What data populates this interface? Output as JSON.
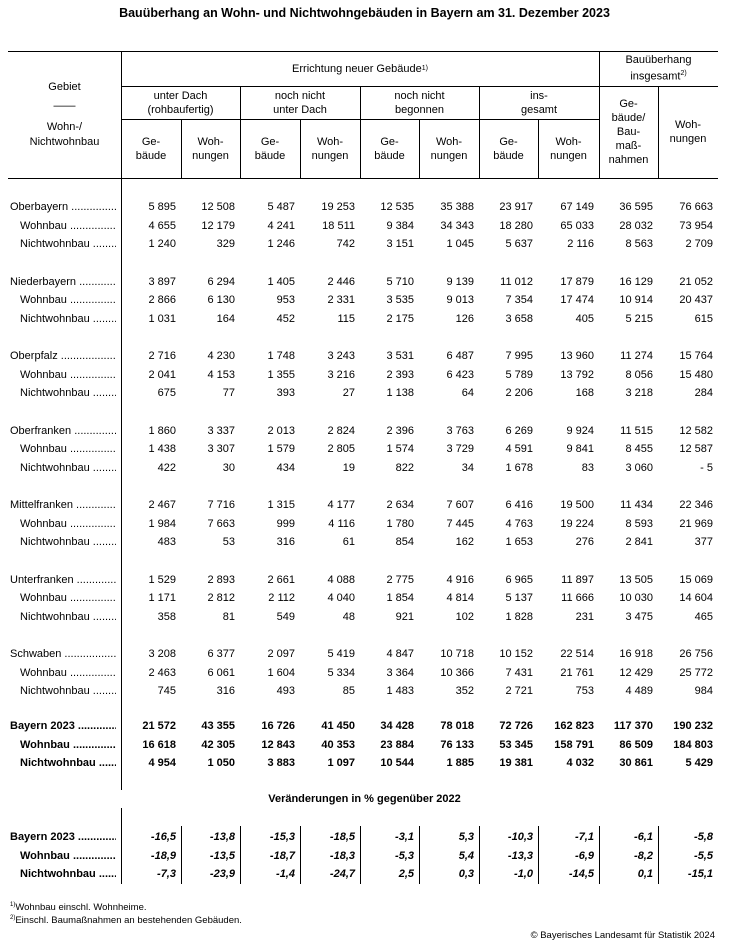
{
  "title": "Bauüberhang an Wohn- und Nichtwohngebäuden in Bayern am 31. Dezember 2023",
  "header": {
    "gebiet": "Gebiet",
    "dash": "——",
    "wohn": "Wohn-/",
    "nichtwohnbau": "Nichtwohnbau",
    "errichtung": "Errichtung neuer Gebäude",
    "errichtung_sup": "1)",
    "ueberhang_line1": "Bauüberhang",
    "ueberhang_line2": "insgesamt",
    "ueberhang_sup": "2)",
    "groups": [
      {
        "l1": "unter Dach",
        "l2": "(rohbaufertig)"
      },
      {
        "l1": "noch nicht",
        "l2": "unter Dach"
      },
      {
        "l1": "noch nicht",
        "l2": "begonnen"
      },
      {
        "l1": "ins-",
        "l2": "gesamt"
      }
    ],
    "gebaeude_l1": "Ge-",
    "gebaeude_l2": "bäude",
    "wohnungen_l1": "Woh-",
    "wohnungen_l2": "nungen",
    "ueb_gebaeude": [
      "Ge-",
      "bäude/",
      "Bau-",
      "maß-",
      "nahmen"
    ],
    "ueb_wohnungen": [
      "Woh-",
      "nungen"
    ]
  },
  "regions": [
    {
      "name": "Oberbayern",
      "rows": [
        [
          "5 895",
          "12 508",
          "5 487",
          "19 253",
          "12 535",
          "35 388",
          "23 917",
          "67 149",
          "36 595",
          "76 663"
        ],
        [
          "4 655",
          "12 179",
          "4 241",
          "18 511",
          "9 384",
          "34 343",
          "18 280",
          "65 033",
          "28 032",
          "73 954"
        ],
        [
          "1 240",
          "329",
          "1 246",
          "742",
          "3 151",
          "1 045",
          "5 637",
          "2 116",
          "8 563",
          "2 709"
        ]
      ]
    },
    {
      "name": "Niederbayern",
      "rows": [
        [
          "3 897",
          "6 294",
          "1 405",
          "2 446",
          "5 710",
          "9 139",
          "11 012",
          "17 879",
          "16 129",
          "21 052"
        ],
        [
          "2 866",
          "6 130",
          "953",
          "2 331",
          "3 535",
          "9 013",
          "7 354",
          "17 474",
          "10 914",
          "20 437"
        ],
        [
          "1 031",
          "164",
          "452",
          "115",
          "2 175",
          "126",
          "3 658",
          "405",
          "5 215",
          "615"
        ]
      ]
    },
    {
      "name": "Oberpfalz",
      "rows": [
        [
          "2 716",
          "4 230",
          "1 748",
          "3 243",
          "3 531",
          "6 487",
          "7 995",
          "13 960",
          "11 274",
          "15 764"
        ],
        [
          "2 041",
          "4 153",
          "1 355",
          "3 216",
          "2 393",
          "6 423",
          "5 789",
          "13 792",
          "8 056",
          "15 480"
        ],
        [
          "675",
          "77",
          "393",
          "27",
          "1 138",
          "64",
          "2 206",
          "168",
          "3 218",
          "284"
        ]
      ]
    },
    {
      "name": "Oberfranken",
      "rows": [
        [
          "1 860",
          "3 337",
          "2 013",
          "2 824",
          "2 396",
          "3 763",
          "6 269",
          "9 924",
          "11 515",
          "12 582"
        ],
        [
          "1 438",
          "3 307",
          "1 579",
          "2 805",
          "1 574",
          "3 729",
          "4 591",
          "9 841",
          "8 455",
          "12 587"
        ],
        [
          "422",
          "30",
          "434",
          "19",
          "822",
          "34",
          "1 678",
          "83",
          "3 060",
          "- 5"
        ]
      ]
    },
    {
      "name": "Mittelfranken",
      "rows": [
        [
          "2 467",
          "7 716",
          "1 315",
          "4 177",
          "2 634",
          "7 607",
          "6 416",
          "19 500",
          "11 434",
          "22 346"
        ],
        [
          "1 984",
          "7 663",
          "999",
          "4 116",
          "1 780",
          "7 445",
          "4 763",
          "19 224",
          "8 593",
          "21 969"
        ],
        [
          "483",
          "53",
          "316",
          "61",
          "854",
          "162",
          "1 653",
          "276",
          "2 841",
          "377"
        ]
      ]
    },
    {
      "name": "Unterfranken",
      "rows": [
        [
          "1 529",
          "2 893",
          "2 661",
          "4 088",
          "2 775",
          "4 916",
          "6 965",
          "11 897",
          "13 505",
          "15 069"
        ],
        [
          "1 171",
          "2 812",
          "2 112",
          "4 040",
          "1 854",
          "4 814",
          "5 137",
          "11 666",
          "10 030",
          "14 604"
        ],
        [
          "358",
          "81",
          "549",
          "48",
          "921",
          "102",
          "1 828",
          "231",
          "3 475",
          "465"
        ]
      ]
    },
    {
      "name": "Schwaben",
      "rows": [
        [
          "3 208",
          "6 377",
          "2 097",
          "5 419",
          "4 847",
          "10 718",
          "10 152",
          "22 514",
          "16 918",
          "26 756"
        ],
        [
          "2 463",
          "6 061",
          "1 604",
          "5 334",
          "3 364",
          "10 366",
          "7 431",
          "21 761",
          "12 429",
          "25 772"
        ],
        [
          "745",
          "316",
          "493",
          "85",
          "1 483",
          "352",
          "2 721",
          "753",
          "4 489",
          "984"
        ]
      ]
    }
  ],
  "sub_labels": [
    "Wohnbau",
    "Nichtwohnbau"
  ],
  "total": {
    "name": "Bayern 2023",
    "rows": [
      [
        "21 572",
        "43 355",
        "16 726",
        "41 450",
        "34 428",
        "78 018",
        "72 726",
        "162 823",
        "117 370",
        "190 232"
      ],
      [
        "16 618",
        "42 305",
        "12 843",
        "40 353",
        "23 884",
        "76 133",
        "53 345",
        "158 791",
        "86 509",
        "184 803"
      ],
      [
        "4 954",
        "1 050",
        "3 883",
        "1 097",
        "10 544",
        "1 885",
        "19 381",
        "4 032",
        "30 861",
        "5 429"
      ]
    ]
  },
  "change": {
    "title": "Veränderungen in % gegenüber 2022",
    "name": "Bayern 2023",
    "rows": [
      [
        "-16,5",
        "-13,8",
        "-15,3",
        "-18,5",
        "-3,1",
        "5,3",
        "-10,3",
        "-7,1",
        "-6,1",
        "-5,8"
      ],
      [
        "-18,9",
        "-13,5",
        "-18,7",
        "-18,3",
        "-5,3",
        "5,4",
        "-13,3",
        "-6,9",
        "-8,2",
        "-5,5"
      ],
      [
        "-7,3",
        "-23,9",
        "-1,4",
        "-24,7",
        "2,5",
        "0,3",
        "-1,0",
        "-14,5",
        "0,1",
        "-15,1"
      ]
    ]
  },
  "footnotes": [
    {
      "mark": "1)",
      "text": "Wohnbau einschl. Wohnheime."
    },
    {
      "mark": "2)",
      "text": "Einschl. Baumaßnahmen an bestehenden Gebäuden."
    }
  ],
  "copyright": "© Bayerisches Landesamt für Statistik 2024"
}
